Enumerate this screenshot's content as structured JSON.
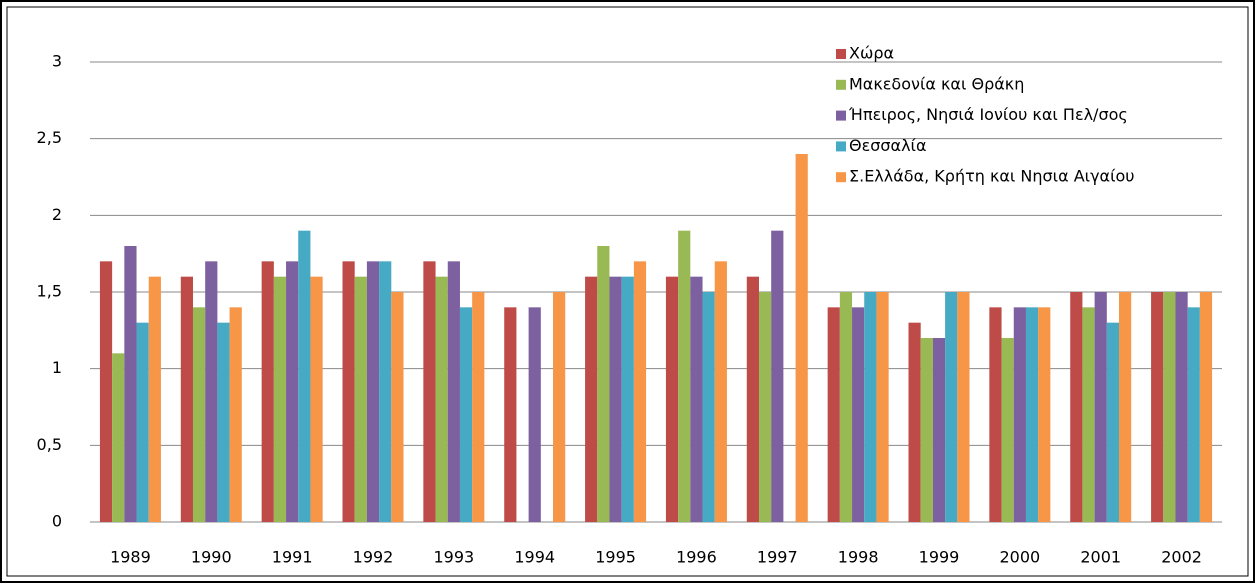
{
  "chart_data": {
    "type": "bar",
    "categories": [
      "1989",
      "1990",
      "1991",
      "1992",
      "1993",
      "1994",
      "1995",
      "1996",
      "1997",
      "1998",
      "1999",
      "2000",
      "2001",
      "2002"
    ],
    "series": [
      {
        "name": "Χώρα",
        "color": "#be4b48",
        "values": [
          1.7,
          1.6,
          1.7,
          1.7,
          1.7,
          1.4,
          1.6,
          1.6,
          1.6,
          1.4,
          1.3,
          1.4,
          1.5,
          1.5
        ]
      },
      {
        "name": "Μακεδονία και Θράκη",
        "color": "#98b954",
        "values": [
          1.1,
          1.4,
          1.6,
          1.6,
          1.6,
          null,
          1.8,
          1.9,
          1.5,
          1.5,
          1.2,
          1.2,
          1.4,
          1.5
        ]
      },
      {
        "name": "Ήπειρος, Νησιά Ιονίου και Πελ/σος",
        "color": "#7d60a0",
        "values": [
          1.8,
          1.7,
          1.7,
          1.7,
          1.7,
          1.4,
          1.6,
          1.6,
          1.9,
          1.4,
          1.2,
          1.4,
          1.5,
          1.5
        ]
      },
      {
        "name": "Θεσσαλία",
        "color": "#46aac5",
        "values": [
          1.3,
          1.3,
          1.9,
          1.7,
          1.4,
          null,
          1.6,
          1.5,
          null,
          1.5,
          1.5,
          1.4,
          1.3,
          1.4
        ]
      },
      {
        "name": "Σ.Ελλάδα, Κρήτη και Νησια Αιγαίου",
        "color": "#f79646",
        "values": [
          1.6,
          1.4,
          1.6,
          1.5,
          1.5,
          1.5,
          1.7,
          1.7,
          2.4,
          1.5,
          1.5,
          1.4,
          1.5,
          1.5
        ]
      }
    ],
    "ylim": [
      0,
      3
    ],
    "yticks": [
      0,
      {
        "value": 0.5,
        "label": "0,5"
      },
      1,
      {
        "value": 1.5,
        "label": "1,5"
      },
      2,
      {
        "value": 2.5,
        "label": "2,5"
      },
      3
    ],
    "grid": true,
    "legend": "top-right"
  }
}
